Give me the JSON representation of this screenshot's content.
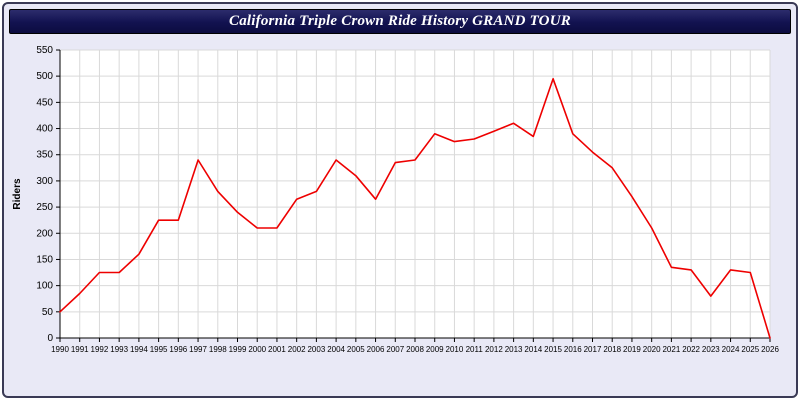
{
  "header": {
    "title": "California Triple Crown Ride History GRAND TOUR"
  },
  "chart_data": {
    "type": "line",
    "title": "California Triple Crown Ride History GRAND TOUR",
    "xlabel": "",
    "ylabel": "Riders",
    "ylim": [
      0,
      550
    ],
    "ytick_step": 50,
    "grid": true,
    "line_color": "#ee0000",
    "plot_background": "#ffffff",
    "page_background": "#e9e9f6",
    "grid_color": "#d9d9d9",
    "axis_color": "#000000",
    "x": [
      1990,
      1991,
      1992,
      1993,
      1994,
      1995,
      1996,
      1997,
      1998,
      1999,
      2000,
      2001,
      2002,
      2003,
      2004,
      2005,
      2006,
      2007,
      2008,
      2009,
      2010,
      2011,
      2012,
      2013,
      2014,
      2015,
      2016,
      2017,
      2018,
      2019,
      2020,
      2021,
      2022,
      2023,
      2024,
      2025,
      2026
    ],
    "series": [
      {
        "name": "Riders",
        "values": [
          50,
          85,
          125,
          125,
          160,
          225,
          225,
          340,
          280,
          240,
          210,
          210,
          265,
          280,
          340,
          310,
          265,
          335,
          340,
          390,
          375,
          380,
          395,
          410,
          385,
          495,
          390,
          355,
          325,
          270,
          210,
          135,
          130,
          80,
          130,
          125,
          0
        ]
      }
    ]
  }
}
